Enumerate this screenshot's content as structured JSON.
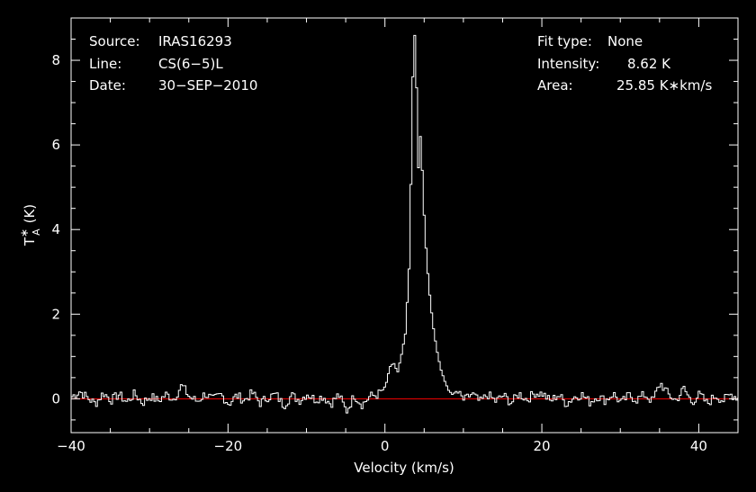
{
  "info": {
    "source_label": "Source:",
    "source_value": "IRAS16293",
    "line_label": "Line:",
    "line_value": "CS(6−5)L",
    "date_label": "Date:",
    "date_value": "30−SEP−2010",
    "fit_label": "Fit type:",
    "fit_value": "None",
    "intensity_label": "Intensity:",
    "intensity_value": "8.62 K",
    "area_label": "Area:",
    "area_value": "25.85 K∗km/s"
  },
  "chart_data": {
    "type": "line",
    "xlabel": "Velocity (km/s)",
    "ylabel_main": "T",
    "ylabel_sup": "∗",
    "ylabel_sub": "A",
    "ylabel_unit": "(K)",
    "xlim": [
      -40,
      45
    ],
    "ylim": [
      -0.8,
      9.0
    ],
    "x_ticks": [
      -40,
      -20,
      0,
      20,
      40
    ],
    "x_tick_labels": [
      "−40",
      "−20",
      "0",
      "20",
      "40"
    ],
    "y_ticks": [
      0,
      2,
      4,
      6,
      8
    ],
    "y_tick_labels": [
      "0",
      "2",
      "4",
      "6",
      "8"
    ],
    "x_minor_step": 5,
    "y_minor_step": 0.5,
    "grid": false,
    "baseline": 0,
    "colors": {
      "spectrum": "#ffffff",
      "baseline": "#ff0000",
      "axes": "#ffffff",
      "background": "#000000"
    },
    "channel_width_kms": 0.24,
    "series": [
      {
        "style": "step",
        "points": [
          [
            -40.0,
            0.05
          ],
          [
            -39.0,
            0.18
          ],
          [
            -38.0,
            0.02
          ],
          [
            -37.0,
            -0.12
          ],
          [
            -36.0,
            0.14
          ],
          [
            -35.0,
            -0.03
          ],
          [
            -34.0,
            0.1
          ],
          [
            -33.0,
            -0.08
          ],
          [
            -32.0,
            0.12
          ],
          [
            -31.0,
            -0.1
          ],
          [
            -30.0,
            0.06
          ],
          [
            -29.0,
            -0.05
          ],
          [
            -28.0,
            0.1
          ],
          [
            -27.0,
            0.0
          ],
          [
            -26.0,
            0.32
          ],
          [
            -25.0,
            0.04
          ],
          [
            -24.0,
            -0.06
          ],
          [
            -23.0,
            0.12
          ],
          [
            -22.0,
            -0.02
          ],
          [
            -21.0,
            0.1
          ],
          [
            -20.0,
            -0.12
          ],
          [
            -19.0,
            0.08
          ],
          [
            -18.0,
            -0.04
          ],
          [
            -17.0,
            0.14
          ],
          [
            -16.0,
            -0.1
          ],
          [
            -15.0,
            0.04
          ],
          [
            -14.0,
            0.1
          ],
          [
            -13.0,
            -0.16
          ],
          [
            -12.0,
            0.08
          ],
          [
            -11.0,
            -0.04
          ],
          [
            -10.0,
            0.12
          ],
          [
            -9.0,
            -0.02
          ],
          [
            -8.0,
            0.06
          ],
          [
            -7.0,
            -0.12
          ],
          [
            -6.0,
            0.1
          ],
          [
            -5.0,
            -0.3
          ],
          [
            -4.0,
            0.08
          ],
          [
            -3.0,
            -0.14
          ],
          [
            -2.0,
            0.06
          ],
          [
            -1.0,
            0.1
          ],
          [
            -0.5,
            0.18
          ],
          [
            0.0,
            0.32
          ],
          [
            0.5,
            0.75
          ],
          [
            1.0,
            0.85
          ],
          [
            1.5,
            0.62
          ],
          [
            2.0,
            1.05
          ],
          [
            2.5,
            1.55
          ],
          [
            3.0,
            3.2
          ],
          [
            3.3,
            6.0
          ],
          [
            3.5,
            8.3
          ],
          [
            3.7,
            8.62
          ],
          [
            3.9,
            7.6
          ],
          [
            4.1,
            5.1
          ],
          [
            4.3,
            6.3
          ],
          [
            4.5,
            6.1
          ],
          [
            4.8,
            4.6
          ],
          [
            5.2,
            3.3
          ],
          [
            5.6,
            2.45
          ],
          [
            6.0,
            1.75
          ],
          [
            6.5,
            1.15
          ],
          [
            7.0,
            0.7
          ],
          [
            7.5,
            0.42
          ],
          [
            8.0,
            0.2
          ],
          [
            8.5,
            0.1
          ],
          [
            9.0,
            0.18
          ],
          [
            10.0,
            -0.04
          ],
          [
            11.0,
            0.12
          ],
          [
            12.0,
            -0.08
          ],
          [
            13.0,
            0.1
          ],
          [
            14.0,
            -0.06
          ],
          [
            15.0,
            0.08
          ],
          [
            16.0,
            -0.1
          ],
          [
            17.0,
            0.12
          ],
          [
            18.0,
            -0.02
          ],
          [
            19.0,
            0.14
          ],
          [
            20.0,
            0.12
          ],
          [
            21.0,
            -0.06
          ],
          [
            22.0,
            0.1
          ],
          [
            23.0,
            -0.12
          ],
          [
            24.0,
            0.04
          ],
          [
            25.0,
            0.1
          ],
          [
            26.0,
            -0.08
          ],
          [
            27.0,
            0.06
          ],
          [
            28.0,
            -0.04
          ],
          [
            29.0,
            0.12
          ],
          [
            30.0,
            -0.1
          ],
          [
            31.0,
            0.08
          ],
          [
            32.0,
            -0.02
          ],
          [
            33.0,
            0.1
          ],
          [
            34.0,
            -0.06
          ],
          [
            35.0,
            0.38
          ],
          [
            36.0,
            0.1
          ],
          [
            37.0,
            -0.04
          ],
          [
            38.0,
            0.24
          ],
          [
            39.0,
            -0.08
          ],
          [
            40.0,
            0.1
          ],
          [
            41.0,
            -0.12
          ],
          [
            42.0,
            0.08
          ],
          [
            43.0,
            -0.04
          ],
          [
            44.0,
            0.1
          ],
          [
            45.0,
            0.02
          ]
        ]
      }
    ]
  }
}
